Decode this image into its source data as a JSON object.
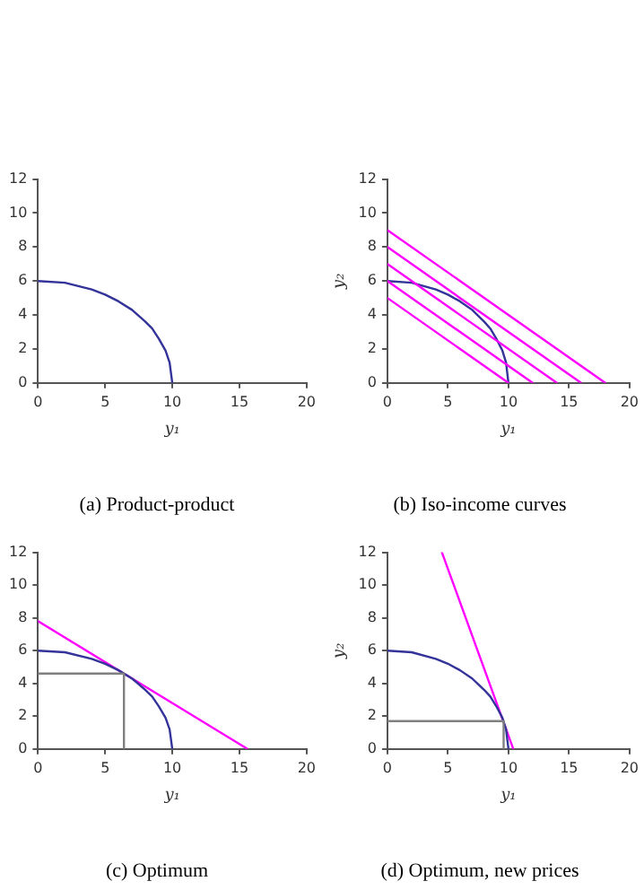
{
  "chart_data": [
    {
      "type": "line",
      "title": "(a) Product-product",
      "xlabel": "y₁",
      "xlim": [
        0,
        20
      ],
      "xticks": [
        0,
        5,
        10,
        15,
        20
      ],
      "ylim": [
        0,
        12
      ],
      "yticks": [
        0,
        2,
        4,
        6,
        8,
        10,
        12
      ],
      "grid": false,
      "legend": false,
      "marker": "none",
      "series": [
        {
          "color": "#333399",
          "x": [
            0,
            2,
            4,
            5,
            6,
            7,
            8,
            8.5,
            9,
            9.5,
            9.8,
            10
          ],
          "values": [
            6,
            5.9,
            5.5,
            5.2,
            4.8,
            4.3,
            3.6,
            3.2,
            2.6,
            1.9,
            1.2,
            0
          ]
        }
      ]
    },
    {
      "type": "line",
      "title": "(b) Iso-income curves",
      "xlabel": "y₁",
      "ylabel": "y₂",
      "xlim": [
        0,
        20
      ],
      "xticks": [
        0,
        5,
        10,
        15,
        20
      ],
      "ylim": [
        0,
        12
      ],
      "yticks": [
        0,
        2,
        4,
        6,
        8,
        10,
        12
      ],
      "grid": false,
      "legend": false,
      "marker": "none",
      "series": [
        {
          "color": "#ff00ff",
          "x": [
            0,
            10
          ],
          "values": [
            5,
            0
          ]
        },
        {
          "color": "#ff00ff",
          "x": [
            0,
            12
          ],
          "values": [
            6,
            0
          ]
        },
        {
          "color": "#ff00ff",
          "x": [
            0,
            14
          ],
          "values": [
            7,
            0
          ]
        },
        {
          "color": "#ff00ff",
          "x": [
            0,
            16
          ],
          "values": [
            8,
            0
          ]
        },
        {
          "color": "#ff00ff",
          "x": [
            0,
            18
          ],
          "values": [
            9,
            0
          ]
        },
        {
          "color": "#333399",
          "x": [
            0,
            2,
            4,
            5,
            6,
            7,
            8,
            8.5,
            9,
            9.5,
            9.8,
            10
          ],
          "values": [
            6,
            5.9,
            5.5,
            5.2,
            4.8,
            4.3,
            3.6,
            3.2,
            2.6,
            1.9,
            1.2,
            0
          ]
        }
      ]
    },
    {
      "type": "line",
      "title": "(c) Optimum",
      "xlabel": "y₁",
      "xlim": [
        0,
        20
      ],
      "xticks": [
        0,
        5,
        10,
        15,
        20
      ],
      "ylim": [
        0,
        12
      ],
      "yticks": [
        0,
        2,
        4,
        6,
        8,
        10,
        12
      ],
      "grid": false,
      "legend": false,
      "marker": "none",
      "series": [
        {
          "color": "#808080",
          "x": [
            0,
            6.4,
            6.4
          ],
          "values": [
            4.6,
            4.6,
            0
          ]
        },
        {
          "color": "#333399",
          "x": [
            0,
            2,
            4,
            5,
            6,
            7,
            8,
            8.5,
            9,
            9.5,
            9.8,
            10
          ],
          "values": [
            6,
            5.9,
            5.5,
            5.2,
            4.8,
            4.3,
            3.6,
            3.2,
            2.6,
            1.9,
            1.2,
            0
          ]
        },
        {
          "color": "#ff00ff",
          "x": [
            0,
            15.6
          ],
          "values": [
            7.8,
            0
          ]
        }
      ]
    },
    {
      "type": "line",
      "title": "(d) Optimum, new prices",
      "xlabel": "y₁",
      "ylabel": "y₂",
      "xlim": [
        0,
        20
      ],
      "xticks": [
        0,
        5,
        10,
        15,
        20
      ],
      "ylim": [
        0,
        12
      ],
      "yticks": [
        0,
        2,
        4,
        6,
        8,
        10,
        12
      ],
      "grid": false,
      "legend": false,
      "marker": "none",
      "series": [
        {
          "color": "#808080",
          "x": [
            0,
            9.6,
            9.6
          ],
          "values": [
            1.7,
            1.7,
            0
          ]
        },
        {
          "color": "#333399",
          "x": [
            0,
            2,
            4,
            5,
            6,
            7,
            8,
            8.5,
            9,
            9.5,
            9.8,
            10
          ],
          "values": [
            6,
            5.9,
            5.5,
            5.2,
            4.8,
            4.3,
            3.6,
            3.2,
            2.6,
            1.9,
            1.2,
            0
          ]
        },
        {
          "color": "#ff00ff",
          "x": [
            4.5,
            10.4
          ],
          "values": [
            12,
            0
          ]
        }
      ]
    }
  ]
}
